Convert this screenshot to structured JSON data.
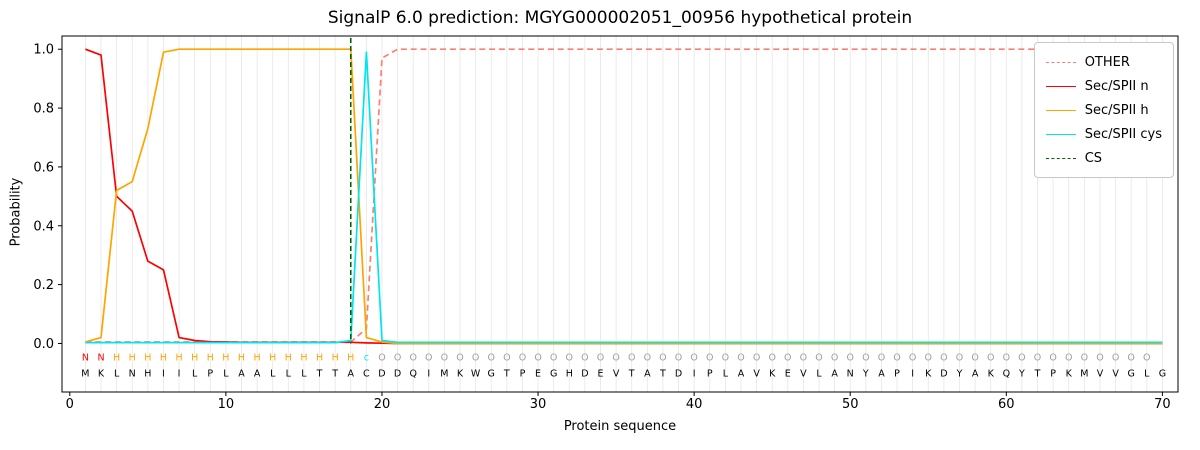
{
  "chart_data": {
    "type": "line",
    "title": "SignalP 6.0 prediction: MGYG000002051_00956 hypothetical protein",
    "xlabel": "Protein sequence",
    "ylabel": "Probability",
    "xlim": [
      -0.5,
      71
    ],
    "ylim": [
      -0.165,
      1.045
    ],
    "xticks": [
      0,
      10,
      20,
      30,
      40,
      50,
      60,
      70
    ],
    "yticks": [
      0,
      0.2,
      0.4,
      0.6,
      0.8,
      1.0
    ],
    "ytick_labels": [
      "0.0",
      "0.2",
      "0.4",
      "0.6",
      "0.8",
      "1.0"
    ],
    "grid": "vertical gridline at each residue position 1-70",
    "legend_position": "upper right",
    "sequence": "MKLNHIILPLAALLLTTACDDQIMKWGTPEGHDEVTATDIPLAVKEVLANYAPIKDYAKQYTPKMVVGLG",
    "annotation_classes": "NNHHHHHHHHHHHHHHHHcOOOOOOOOOOOOOOOOOOOOOOOOOOOOOOOOOOOOOOOOOOOOOOOOOO",
    "class_colors": {
      "N": "#ff0000",
      "H": "#ffa500",
      "c": "#00e5ee",
      "O": "#9e9e9e"
    },
    "colors": {
      "background": "#ffffff",
      "grid": "#e6e6e6",
      "frame": "#000000",
      "text": "#000000"
    },
    "series": [
      {
        "name": "OTHER",
        "color": "#fa8072",
        "style": "dashed",
        "values": [
          0.005,
          0.005,
          0.005,
          0.005,
          0.005,
          0.005,
          0.005,
          0.005,
          0.005,
          0.005,
          0.005,
          0.005,
          0.005,
          0.005,
          0.005,
          0.005,
          0.005,
          0.005,
          0.05,
          0.97,
          1,
          1,
          1,
          1,
          1,
          1,
          1,
          1,
          1,
          1,
          1,
          1,
          1,
          1,
          1,
          1,
          1,
          1,
          1,
          1,
          1,
          1,
          1,
          1,
          1,
          1,
          1,
          1,
          1,
          1,
          1,
          1,
          1,
          1,
          1,
          1,
          1,
          1,
          1,
          1,
          1,
          1,
          1,
          1,
          1,
          1,
          1,
          1,
          1,
          1
        ]
      },
      {
        "name": "Sec/SPII n",
        "color": "#ff0000",
        "style": "solid",
        "values": [
          1.0,
          0.98,
          0.5,
          0.45,
          0.28,
          0.25,
          0.02,
          0.01,
          0.006,
          0.005,
          0.004,
          0.004,
          0.004,
          0.004,
          0.004,
          0.004,
          0.004,
          0.004,
          0.002,
          0.001,
          0,
          0,
          0,
          0,
          0,
          0,
          0,
          0,
          0,
          0,
          0,
          0,
          0,
          0,
          0,
          0,
          0,
          0,
          0,
          0,
          0,
          0,
          0,
          0,
          0,
          0,
          0,
          0,
          0,
          0,
          0,
          0,
          0,
          0,
          0,
          0,
          0,
          0,
          0,
          0,
          0,
          0,
          0,
          0,
          0,
          0,
          0,
          0,
          0,
          0
        ]
      },
      {
        "name": "Sec/SPII h",
        "color": "#ffa500",
        "style": "solid",
        "values": [
          0.005,
          0.02,
          0.52,
          0.55,
          0.73,
          0.99,
          1,
          1,
          1,
          1,
          1,
          1,
          1,
          1,
          1,
          1,
          1,
          1,
          0.02,
          0.005,
          0,
          0,
          0,
          0,
          0,
          0,
          0,
          0,
          0,
          0,
          0,
          0,
          0,
          0,
          0,
          0,
          0,
          0,
          0,
          0,
          0,
          0,
          0,
          0,
          0,
          0,
          0,
          0,
          0,
          0,
          0,
          0,
          0,
          0,
          0,
          0,
          0,
          0,
          0,
          0,
          0,
          0,
          0,
          0,
          0,
          0,
          0,
          0,
          0,
          0
        ]
      },
      {
        "name": "Sec/SPII cys",
        "color": "#00e5ee",
        "style": "solid",
        "values": [
          0.003,
          0.003,
          0.003,
          0.003,
          0.003,
          0.003,
          0.003,
          0.003,
          0.003,
          0.003,
          0.003,
          0.003,
          0.003,
          0.003,
          0.003,
          0.003,
          0.003,
          0.01,
          0.99,
          0.01,
          0.004,
          0.004,
          0.004,
          0.004,
          0.004,
          0.004,
          0.004,
          0.004,
          0.004,
          0.004,
          0.004,
          0.004,
          0.004,
          0.004,
          0.004,
          0.004,
          0.004,
          0.004,
          0.004,
          0.004,
          0.004,
          0.004,
          0.004,
          0.004,
          0.004,
          0.004,
          0.004,
          0.004,
          0.004,
          0.004,
          0.004,
          0.004,
          0.004,
          0.004,
          0.004,
          0.004,
          0.004,
          0.004,
          0.004,
          0.004,
          0.004,
          0.004,
          0.004,
          0.004,
          0.004,
          0.004,
          0.004,
          0.004,
          0.004,
          0.004
        ]
      }
    ],
    "cs_marker": {
      "name": "CS",
      "color": "#006400",
      "style": "dashed",
      "x": 18
    }
  }
}
